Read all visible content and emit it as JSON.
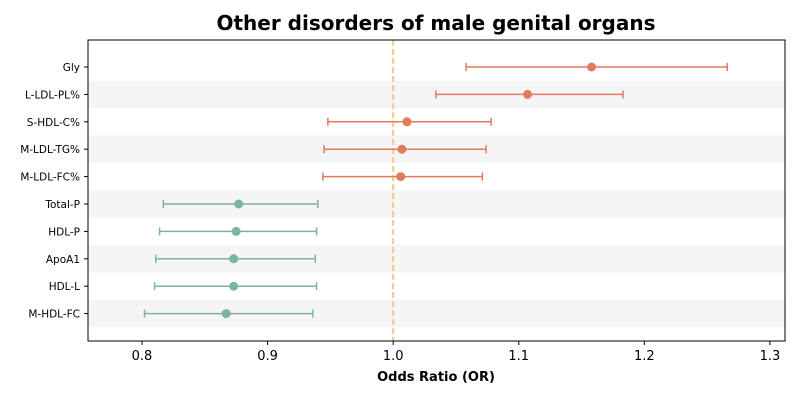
{
  "chart_data": {
    "type": "forest",
    "title": "Other disorders of male genital organs",
    "xlabel": "Odds Ratio (OR)",
    "ylabel": "",
    "xlim": [
      0.757,
      1.312
    ],
    "xticks": [
      0.8,
      0.9,
      1.0,
      1.1,
      1.2,
      1.3
    ],
    "xtick_labels": [
      "0.8",
      "0.9",
      "1.0",
      "1.1",
      "1.2",
      "1.3"
    ],
    "reference_line": 1.0,
    "grid": false,
    "row_striping": true,
    "colors": {
      "positive": "#e07b5d",
      "negative": "#7db59a",
      "reference": "#f5c98a",
      "stripe": "#f5f5f5"
    },
    "series": [
      {
        "category": "Gly",
        "or": 1.158,
        "ci_low": 1.058,
        "ci_high": 1.266
      },
      {
        "category": "L-LDL-PL%",
        "or": 1.107,
        "ci_low": 1.034,
        "ci_high": 1.183
      },
      {
        "category": "S-HDL-C%",
        "or": 1.011,
        "ci_low": 0.948,
        "ci_high": 1.078
      },
      {
        "category": "M-LDL-TG%",
        "or": 1.007,
        "ci_low": 0.945,
        "ci_high": 1.074
      },
      {
        "category": "M-LDL-FC%",
        "or": 1.006,
        "ci_low": 0.944,
        "ci_high": 1.071
      },
      {
        "category": "Total-P",
        "or": 0.877,
        "ci_low": 0.817,
        "ci_high": 0.94
      },
      {
        "category": "HDL-P",
        "or": 0.875,
        "ci_low": 0.814,
        "ci_high": 0.939
      },
      {
        "category": "ApoA1",
        "or": 0.873,
        "ci_low": 0.811,
        "ci_high": 0.938
      },
      {
        "category": "HDL-L",
        "or": 0.873,
        "ci_low": 0.81,
        "ci_high": 0.939
      },
      {
        "category": "M-HDL-FC",
        "or": 0.867,
        "ci_low": 0.802,
        "ci_high": 0.936
      }
    ]
  }
}
